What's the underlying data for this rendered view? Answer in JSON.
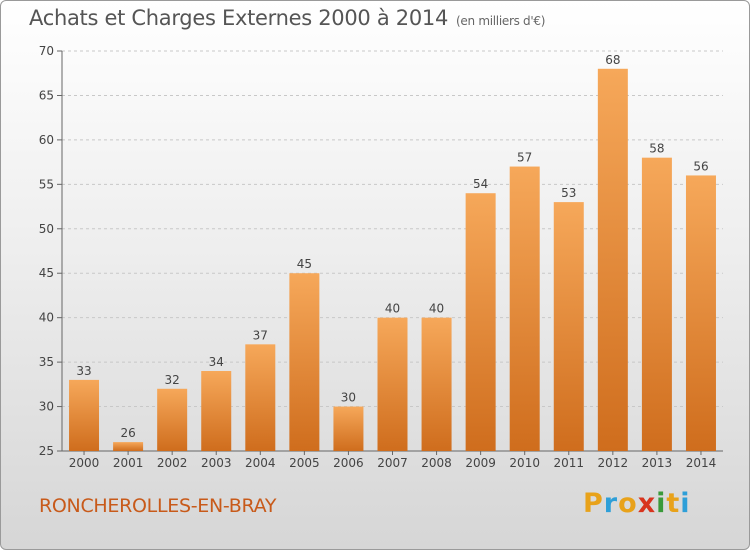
{
  "title": "Achats et Charges Externes 2000 à 2014",
  "subtitle": "(en milliers d'€)",
  "location": "RONCHEROLLES-EN-BRAY",
  "logo": {
    "letters": [
      "P",
      "r",
      "o",
      "x",
      "i",
      "t",
      "i"
    ],
    "colors": [
      "#e8a21a",
      "#2e9fd8",
      "#e8a21a",
      "#d8341e",
      "#3a9a3a",
      "#e8a21a",
      "#2e9fd8"
    ]
  },
  "colors": {
    "bar_top": "#f6a85a",
    "bar_bottom": "#cf6d1d",
    "title": "#555555",
    "location": "#c85a1a"
  },
  "chart_data": {
    "type": "bar",
    "categories": [
      "2000",
      "2001",
      "2002",
      "2003",
      "2004",
      "2005",
      "2006",
      "2007",
      "2008",
      "2009",
      "2010",
      "2011",
      "2012",
      "2013",
      "2014"
    ],
    "values": [
      33,
      26,
      32,
      34,
      37,
      45,
      30,
      40,
      40,
      54,
      57,
      53,
      68,
      58,
      56
    ],
    "ylim": [
      25,
      70
    ],
    "yticks": [
      25,
      30,
      35,
      40,
      45,
      50,
      55,
      60,
      65,
      70
    ],
    "grid": true,
    "data_labels": true
  }
}
